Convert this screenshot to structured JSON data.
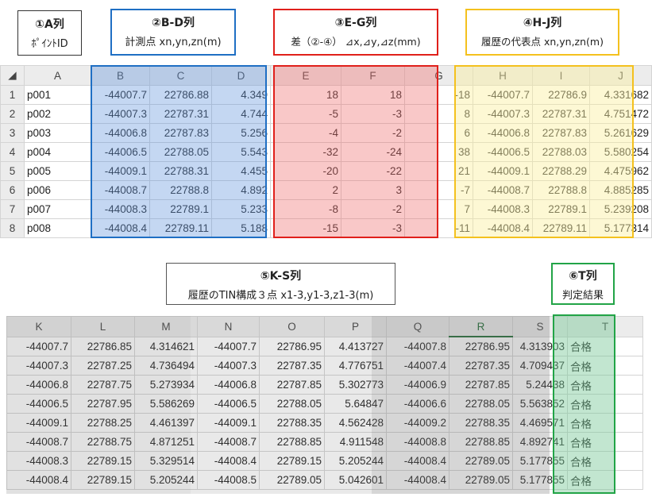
{
  "labels": {
    "a": {
      "title": "①A列",
      "sub": "ﾎﾟｲﾝﾄID"
    },
    "bd": {
      "title": "②B-D列",
      "sub": "計測点 xn,yn,zn(m)"
    },
    "eg": {
      "title": "③E-G列",
      "sub": "差（②-④） ⊿x,⊿y,⊿z(mm)"
    },
    "hj": {
      "title": "④H-J列",
      "sub": "履歴の代表点 xn,yn,zn(m)"
    },
    "ks": {
      "title": "⑤K-S列",
      "sub": "履歴のTIN構成３点 x1-3,y1-3,z1-3(m)"
    },
    "t": {
      "title": "⑥T列",
      "sub": "判定結果"
    }
  },
  "colors": {
    "blue": "#1f6fc4",
    "red": "#e0201b",
    "yellow": "#f4c11e",
    "green": "#22a447"
  },
  "table1": {
    "columns": [
      "A",
      "B",
      "C",
      "D",
      "E",
      "F",
      "G",
      "H",
      "I",
      "J"
    ],
    "rows": [
      {
        "n": "1",
        "cells": [
          "p001",
          "-44007.7",
          "22786.88",
          "4.349",
          "18",
          "18",
          "-18",
          "-44007.7",
          "22786.9",
          "4.331682"
        ]
      },
      {
        "n": "2",
        "cells": [
          "p002",
          "-44007.3",
          "22787.31",
          "4.744",
          "-5",
          "-3",
          "8",
          "-44007.3",
          "22787.31",
          "4.751472"
        ]
      },
      {
        "n": "3",
        "cells": [
          "p003",
          "-44006.8",
          "22787.83",
          "5.256",
          "-4",
          "-2",
          "6",
          "-44006.8",
          "22787.83",
          "5.261629"
        ]
      },
      {
        "n": "4",
        "cells": [
          "p004",
          "-44006.5",
          "22788.05",
          "5.543",
          "-32",
          "-24",
          "38",
          "-44006.5",
          "22788.03",
          "5.580254"
        ]
      },
      {
        "n": "5",
        "cells": [
          "p005",
          "-44009.1",
          "22788.31",
          "4.455",
          "-20",
          "-22",
          "21",
          "-44009.1",
          "22788.29",
          "4.475962"
        ]
      },
      {
        "n": "6",
        "cells": [
          "p006",
          "-44008.7",
          "22788.8",
          "4.892",
          "2",
          "3",
          "-7",
          "-44008.7",
          "22788.8",
          "4.885285"
        ]
      },
      {
        "n": "7",
        "cells": [
          "p007",
          "-44008.3",
          "22789.1",
          "5.233",
          "-8",
          "-2",
          "7",
          "-44008.3",
          "22789.1",
          "5.239208"
        ]
      },
      {
        "n": "8",
        "cells": [
          "p008",
          "-44008.4",
          "22789.11",
          "5.188",
          "-15",
          "-3",
          "-11",
          "-44008.4",
          "22789.11",
          "5.177314"
        ]
      }
    ]
  },
  "table2": {
    "columns": [
      "K",
      "L",
      "M",
      "N",
      "O",
      "P",
      "Q",
      "R",
      "S",
      "T"
    ],
    "rows": [
      [
        "-44007.7",
        "22786.85",
        "4.314621",
        "-44007.7",
        "22786.95",
        "4.413727",
        "-44007.8",
        "22786.95",
        "4.313903",
        "合格"
      ],
      [
        "-44007.3",
        "22787.25",
        "4.736494",
        "-44007.3",
        "22787.35",
        "4.776751",
        "-44007.4",
        "22787.35",
        "4.709437",
        "合格"
      ],
      [
        "-44006.8",
        "22787.75",
        "5.273934",
        "-44006.8",
        "22787.85",
        "5.302773",
        "-44006.9",
        "22787.85",
        "5.24438",
        "合格"
      ],
      [
        "-44006.5",
        "22787.95",
        "5.586269",
        "-44006.5",
        "22788.05",
        "5.64847",
        "-44006.6",
        "22788.05",
        "5.563852",
        "合格"
      ],
      [
        "-44009.1",
        "22788.25",
        "4.461397",
        "-44009.1",
        "22788.35",
        "4.562428",
        "-44009.2",
        "22788.35",
        "4.469571",
        "合格"
      ],
      [
        "-44008.7",
        "22788.75",
        "4.871251",
        "-44008.7",
        "22788.85",
        "4.911548",
        "-44008.8",
        "22788.85",
        "4.892741",
        "合格"
      ],
      [
        "-44008.3",
        "22789.15",
        "5.329514",
        "-44008.4",
        "22789.15",
        "5.205244",
        "-44008.4",
        "22789.05",
        "5.177855",
        "合格"
      ],
      [
        "-44008.4",
        "22789.15",
        "5.205244",
        "-44008.5",
        "22789.05",
        "5.042601",
        "-44008.4",
        "22789.05",
        "5.177855",
        "合格"
      ]
    ]
  }
}
